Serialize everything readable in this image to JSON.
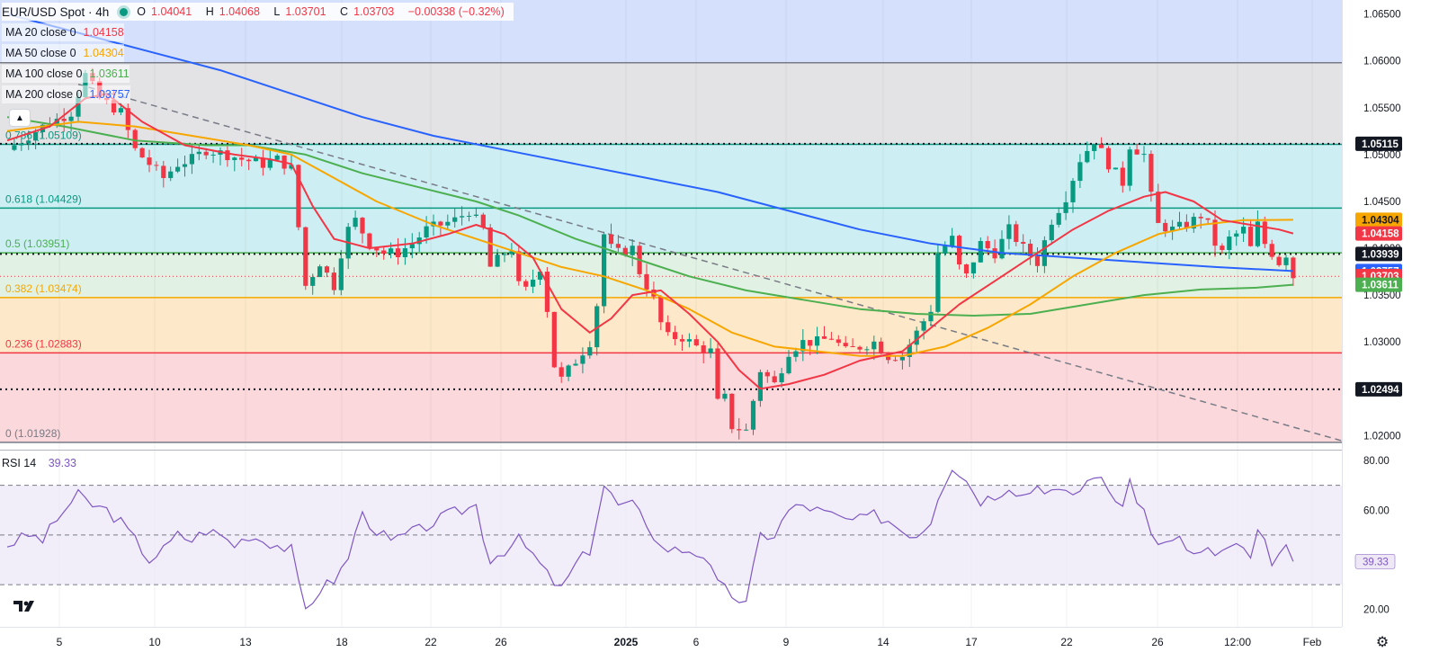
{
  "header": {
    "symbol": "EUR/USD Spot · 4h",
    "ohlc": {
      "open_label": "O",
      "open": "1.04041",
      "high_label": "H",
      "high": "1.04068",
      "low_label": "L",
      "low": "1.03701",
      "close_label": "C",
      "close": "1.03703",
      "change": "−0.00338 (−0.32%)"
    }
  },
  "indicators": [
    {
      "label": "MA 20 close 0",
      "value": "1.04158",
      "color": "#f23645"
    },
    {
      "label": "MA 50 close 0",
      "value": "1.04304",
      "color": "#f7a600"
    },
    {
      "label": "MA 100 close 0",
      "value": "1.03611",
      "color": "#4caf50"
    },
    {
      "label": "MA 200 close 0",
      "value": "1.03757",
      "color": "#2962ff"
    }
  ],
  "rsi": {
    "label": "RSI 14",
    "value": "39.33",
    "color": "#7e57c2"
  },
  "colors": {
    "bull": "#089981",
    "bear": "#f23645",
    "ma20": "#f23645",
    "ma50": "#f7a600",
    "ma100": "#4caf50",
    "ma200": "#2962ff",
    "trendline": "#787b86",
    "rsi": "#7e57c2",
    "rsi_band": "#ede7f6",
    "zone_blue": "#d4e0fc",
    "zone_grey": "#e3e3e6",
    "zone_cyan": "#cdeff3",
    "zone_green": "#e1f1e3",
    "zone_orange": "#fde9c9",
    "zone_red": "#fad8db"
  },
  "icons": {
    "collapse": "chevron-up-icon",
    "logo": "tradingview-logo-icon",
    "settings": "gear-icon"
  },
  "chart_data": {
    "type": "candlestick",
    "title": "EUR/USD Spot · 4h",
    "ylim": [
      1.0185,
      1.0665
    ],
    "x_tick_labels": [
      "5",
      "10",
      "13",
      "18",
      "22",
      "26",
      "2025",
      "6",
      "9",
      "14",
      "17",
      "22",
      "26",
      "12:00",
      "Feb"
    ],
    "y_tick_labels": [
      "1.06500",
      "1.06000",
      "1.05500",
      "1.05000",
      "1.04500",
      "1.04000",
      "1.03500",
      "1.03000",
      "1.02500",
      "1.02000"
    ],
    "fib_levels": [
      {
        "label": "0.786 (1.05109)",
        "ratio": 0.786,
        "value": 1.05109
      },
      {
        "label": "0.618 (1.04429)",
        "ratio": 0.618,
        "value": 1.04429
      },
      {
        "label": "0.5 (1.03951)",
        "ratio": 0.5,
        "value": 1.03951
      },
      {
        "label": "0.382 (1.03474)",
        "ratio": 0.382,
        "value": 1.03474
      },
      {
        "label": "0.236 (1.02883)",
        "ratio": 0.236,
        "value": 1.02883
      },
      {
        "label": "0 (1.01928)",
        "ratio": 0.0,
        "value": 1.01928
      }
    ],
    "fib_top": 1.0598,
    "horizontal_levels": [
      1.05115,
      1.03939,
      1.02494
    ],
    "price_labels": [
      {
        "text": "1.05115",
        "value": 1.05115,
        "bg": "#131722",
        "fg": "#ffffff"
      },
      {
        "text": "1.04304",
        "value": 1.04304,
        "bg": "#f7a600",
        "fg": "#131722"
      },
      {
        "text": "1.04158",
        "value": 1.04158,
        "bg": "#f23645",
        "fg": "#ffffff"
      },
      {
        "text": "1.03939",
        "value": 1.03939,
        "bg": "#131722",
        "fg": "#ffffff"
      },
      {
        "text": "1.03757",
        "value": 1.03757,
        "bg": "#2962ff",
        "fg": "#ffffff"
      },
      {
        "text": "1.03703",
        "value": 1.03703,
        "bg": "#f23645",
        "fg": "#ffffff"
      },
      {
        "text": "1.03611",
        "value": 1.03611,
        "bg": "#4caf50",
        "fg": "#ffffff"
      },
      {
        "text": "1.02494",
        "value": 1.02494,
        "bg": "#131722",
        "fg": "#ffffff"
      }
    ],
    "close_path": [
      [
        0,
        1.0505
      ],
      [
        5,
        1.053
      ],
      [
        9,
        1.0545
      ],
      [
        11,
        1.0585
      ],
      [
        13,
        1.056
      ],
      [
        16,
        1.0545
      ],
      [
        18,
        1.0505
      ],
      [
        20,
        1.049
      ],
      [
        22,
        1.0475
      ],
      [
        24,
        1.049
      ],
      [
        26,
        1.0495
      ],
      [
        28,
        1.0505
      ],
      [
        31,
        1.05
      ],
      [
        33,
        1.0495
      ],
      [
        36,
        1.049
      ],
      [
        38,
        1.0495
      ],
      [
        40,
        1.0485
      ],
      [
        42,
        1.036
      ],
      [
        44,
        1.0385
      ],
      [
        46,
        1.036
      ],
      [
        47,
        1.0395
      ],
      [
        48,
        1.042
      ],
      [
        49,
        1.043
      ],
      [
        51,
        1.0405
      ],
      [
        53,
        1.0395
      ],
      [
        55,
        1.0395
      ],
      [
        57,
        1.0405
      ],
      [
        59,
        1.042
      ],
      [
        61,
        1.0425
      ],
      [
        63,
        1.043
      ],
      [
        65,
        1.044
      ],
      [
        67,
        1.042
      ],
      [
        68,
        1.038
      ],
      [
        70,
        1.0395
      ],
      [
        71,
        1.04
      ],
      [
        72,
        1.036
      ],
      [
        73,
        1.0355
      ],
      [
        75,
        1.038
      ],
      [
        76,
        1.0335
      ],
      [
        77,
        1.0275
      ],
      [
        78,
        1.026
      ],
      [
        80,
        1.028
      ],
      [
        82,
        1.03
      ],
      [
        83,
        1.034
      ],
      [
        84,
        1.0415
      ],
      [
        85,
        1.04
      ],
      [
        86,
        1.0395
      ],
      [
        88,
        1.04
      ],
      [
        89,
        1.0375
      ],
      [
        91,
        1.0345
      ],
      [
        92,
        1.032
      ],
      [
        93,
        1.0305
      ],
      [
        95,
        1.0305
      ],
      [
        97,
        1.0295
      ],
      [
        99,
        1.029
      ],
      [
        100,
        1.0235
      ],
      [
        101,
        1.024
      ],
      [
        102,
        1.021
      ],
      [
        104,
        1.0205
      ],
      [
        106,
        1.027
      ],
      [
        108,
        1.0255
      ],
      [
        110,
        1.029
      ],
      [
        112,
        1.03
      ],
      [
        114,
        1.03
      ],
      [
        116,
        1.0305
      ],
      [
        118,
        1.029
      ],
      [
        120,
        1.0295
      ],
      [
        122,
        1.03
      ],
      [
        124,
        1.0285
      ],
      [
        126,
        1.0285
      ],
      [
        128,
        1.031
      ],
      [
        130,
        1.0335
      ],
      [
        131,
        1.0395
      ],
      [
        133,
        1.041
      ],
      [
        134,
        1.038
      ],
      [
        135,
        1.037
      ],
      [
        137,
        1.0405
      ],
      [
        139,
        1.0395
      ],
      [
        141,
        1.042
      ],
      [
        143,
        1.04
      ],
      [
        145,
        1.0385
      ],
      [
        147,
        1.043
      ],
      [
        149,
        1.0455
      ],
      [
        151,
        1.0495
      ],
      [
        153,
        1.0515
      ],
      [
        155,
        1.049
      ],
      [
        157,
        1.047
      ],
      [
        158,
        1.051
      ],
      [
        160,
        1.05
      ],
      [
        161,
        1.0455
      ],
      [
        162,
        1.0425
      ],
      [
        164,
        1.042
      ],
      [
        166,
        1.0425
      ],
      [
        168,
        1.0435
      ],
      [
        169,
        1.0425
      ],
      [
        170,
        1.0405
      ],
      [
        171,
        1.0395
      ],
      [
        172,
        1.041
      ],
      [
        174,
        1.042
      ],
      [
        175,
        1.04
      ],
      [
        176,
        1.0425
      ],
      [
        177,
        1.0405
      ],
      [
        178,
        1.0395
      ],
      [
        179,
        1.0385
      ],
      [
        180,
        1.0394
      ],
      [
        181,
        1.037
      ]
    ],
    "ma20": [
      [
        0,
        1.0515
      ],
      [
        6,
        1.053
      ],
      [
        11,
        1.056
      ],
      [
        14,
        1.0565
      ],
      [
        19,
        1.0535
      ],
      [
        25,
        1.051
      ],
      [
        32,
        1.05
      ],
      [
        37,
        1.0495
      ],
      [
        40,
        1.049
      ],
      [
        43,
        1.0445
      ],
      [
        46,
        1.041
      ],
      [
        51,
        1.04
      ],
      [
        57,
        1.0405
      ],
      [
        62,
        1.0415
      ],
      [
        66,
        1.0425
      ],
      [
        70,
        1.0415
      ],
      [
        74,
        1.039
      ],
      [
        78,
        1.0335
      ],
      [
        82,
        1.031
      ],
      [
        85,
        1.0325
      ],
      [
        88,
        1.035
      ],
      [
        92,
        1.0355
      ],
      [
        96,
        1.033
      ],
      [
        100,
        1.03
      ],
      [
        103,
        1.027
      ],
      [
        106,
        1.025
      ],
      [
        110,
        1.0255
      ],
      [
        115,
        1.0265
      ],
      [
        120,
        1.028
      ],
      [
        126,
        1.029
      ],
      [
        130,
        1.0315
      ],
      [
        134,
        1.034
      ],
      [
        140,
        1.037
      ],
      [
        145,
        1.0395
      ],
      [
        150,
        1.042
      ],
      [
        155,
        1.044
      ],
      [
        160,
        1.0455
      ],
      [
        163,
        1.046
      ],
      [
        167,
        1.045
      ],
      [
        171,
        1.043
      ],
      [
        175,
        1.0425
      ],
      [
        179,
        1.042
      ],
      [
        181,
        1.04158
      ]
    ],
    "ma50": [
      [
        0,
        1.0525
      ],
      [
        10,
        1.0535
      ],
      [
        18,
        1.053
      ],
      [
        26,
        1.052
      ],
      [
        34,
        1.051
      ],
      [
        40,
        1.05
      ],
      [
        46,
        1.0475
      ],
      [
        52,
        1.045
      ],
      [
        60,
        1.0425
      ],
      [
        66,
        1.041
      ],
      [
        72,
        1.0395
      ],
      [
        78,
        1.038
      ],
      [
        84,
        1.037
      ],
      [
        90,
        1.0355
      ],
      [
        96,
        1.0335
      ],
      [
        102,
        1.031
      ],
      [
        108,
        1.0295
      ],
      [
        114,
        1.029
      ],
      [
        120,
        1.0285
      ],
      [
        126,
        1.0285
      ],
      [
        132,
        1.0295
      ],
      [
        138,
        1.0315
      ],
      [
        144,
        1.034
      ],
      [
        150,
        1.037
      ],
      [
        156,
        1.0395
      ],
      [
        162,
        1.0415
      ],
      [
        168,
        1.0425
      ],
      [
        174,
        1.043
      ],
      [
        181,
        1.04304
      ]
    ],
    "ma100": [
      [
        0,
        1.054
      ],
      [
        8,
        1.053
      ],
      [
        18,
        1.0515
      ],
      [
        28,
        1.051
      ],
      [
        34,
        1.051
      ],
      [
        42,
        1.05
      ],
      [
        50,
        1.048
      ],
      [
        58,
        1.0465
      ],
      [
        66,
        1.045
      ],
      [
        72,
        1.0435
      ],
      [
        80,
        1.041
      ],
      [
        88,
        1.039
      ],
      [
        96,
        1.037
      ],
      [
        104,
        1.0355
      ],
      [
        112,
        1.0345
      ],
      [
        120,
        1.0335
      ],
      [
        128,
        1.033
      ],
      [
        136,
        1.0328
      ],
      [
        144,
        1.033
      ],
      [
        152,
        1.034
      ],
      [
        160,
        1.035
      ],
      [
        168,
        1.0356
      ],
      [
        176,
        1.0358
      ],
      [
        181,
        1.03611
      ]
    ],
    "ma200": [
      [
        0,
        1.065
      ],
      [
        10,
        1.063
      ],
      [
        20,
        1.061
      ],
      [
        30,
        1.059
      ],
      [
        40,
        1.0565
      ],
      [
        50,
        1.054
      ],
      [
        60,
        1.052
      ],
      [
        70,
        1.0505
      ],
      [
        80,
        1.049
      ],
      [
        90,
        1.0475
      ],
      [
        100,
        1.046
      ],
      [
        110,
        1.044
      ],
      [
        120,
        1.042
      ],
      [
        130,
        1.0405
      ],
      [
        140,
        1.0395
      ],
      [
        150,
        1.039
      ],
      [
        160,
        1.0385
      ],
      [
        170,
        1.038
      ],
      [
        181,
        1.03757
      ]
    ],
    "trendline": {
      "start": [
        10,
        1.0575
      ],
      "end": [
        189,
        1.0192
      ]
    },
    "rsi_panel": {
      "ylim": [
        13,
        84
      ],
      "y_tick_labels": [
        "80.00",
        "60.00",
        "20.00"
      ],
      "bands": [
        70,
        50,
        30
      ],
      "current": 39.33,
      "values": [
        [
          0,
          46
        ],
        [
          3,
          50
        ],
        [
          5,
          48
        ],
        [
          8,
          60
        ],
        [
          10,
          66
        ],
        [
          12,
          62
        ],
        [
          14,
          60
        ],
        [
          16,
          55
        ],
        [
          18,
          48
        ],
        [
          20,
          40
        ],
        [
          22,
          44
        ],
        [
          24,
          50
        ],
        [
          26,
          48
        ],
        [
          28,
          52
        ],
        [
          30,
          50
        ],
        [
          32,
          46
        ],
        [
          34,
          50
        ],
        [
          36,
          48
        ],
        [
          38,
          46
        ],
        [
          40,
          44
        ],
        [
          41,
          30
        ],
        [
          42,
          20
        ],
        [
          44,
          28
        ],
        [
          46,
          32
        ],
        [
          48,
          40
        ],
        [
          49,
          52
        ],
        [
          50,
          58
        ],
        [
          52,
          52
        ],
        [
          54,
          47
        ],
        [
          56,
          50
        ],
        [
          58,
          52
        ],
        [
          60,
          55
        ],
        [
          62,
          58
        ],
        [
          64,
          60
        ],
        [
          66,
          62
        ],
        [
          67,
          50
        ],
        [
          68,
          40
        ],
        [
          70,
          44
        ],
        [
          72,
          48
        ],
        [
          74,
          42
        ],
        [
          76,
          34
        ],
        [
          78,
          28
        ],
        [
          80,
          38
        ],
        [
          82,
          44
        ],
        [
          84,
          70
        ],
        [
          86,
          62
        ],
        [
          88,
          62
        ],
        [
          90,
          55
        ],
        [
          92,
          45
        ],
        [
          94,
          44
        ],
        [
          96,
          44
        ],
        [
          98,
          42
        ],
        [
          100,
          30
        ],
        [
          102,
          26
        ],
        [
          104,
          22
        ],
        [
          106,
          50
        ],
        [
          108,
          50
        ],
        [
          110,
          60
        ],
        [
          112,
          62
        ],
        [
          114,
          60
        ],
        [
          116,
          58
        ],
        [
          118,
          56
        ],
        [
          120,
          56
        ],
        [
          122,
          58
        ],
        [
          124,
          56
        ],
        [
          126,
          52
        ],
        [
          128,
          50
        ],
        [
          130,
          56
        ],
        [
          131,
          66
        ],
        [
          133,
          78
        ],
        [
          135,
          72
        ],
        [
          137,
          64
        ],
        [
          139,
          66
        ],
        [
          141,
          70
        ],
        [
          143,
          66
        ],
        [
          145,
          70
        ],
        [
          147,
          68
        ],
        [
          149,
          66
        ],
        [
          151,
          68
        ],
        [
          153,
          75
        ],
        [
          155,
          68
        ],
        [
          157,
          62
        ],
        [
          158,
          70
        ],
        [
          160,
          60
        ],
        [
          161,
          50
        ],
        [
          163,
          46
        ],
        [
          165,
          48
        ],
        [
          167,
          42
        ],
        [
          169,
          44
        ],
        [
          170,
          40
        ],
        [
          172,
          46
        ],
        [
          174,
          44
        ],
        [
          175,
          40
        ],
        [
          176,
          50
        ],
        [
          177,
          46
        ],
        [
          178,
          40
        ],
        [
          180,
          44
        ],
        [
          181,
          39.33
        ]
      ]
    }
  }
}
